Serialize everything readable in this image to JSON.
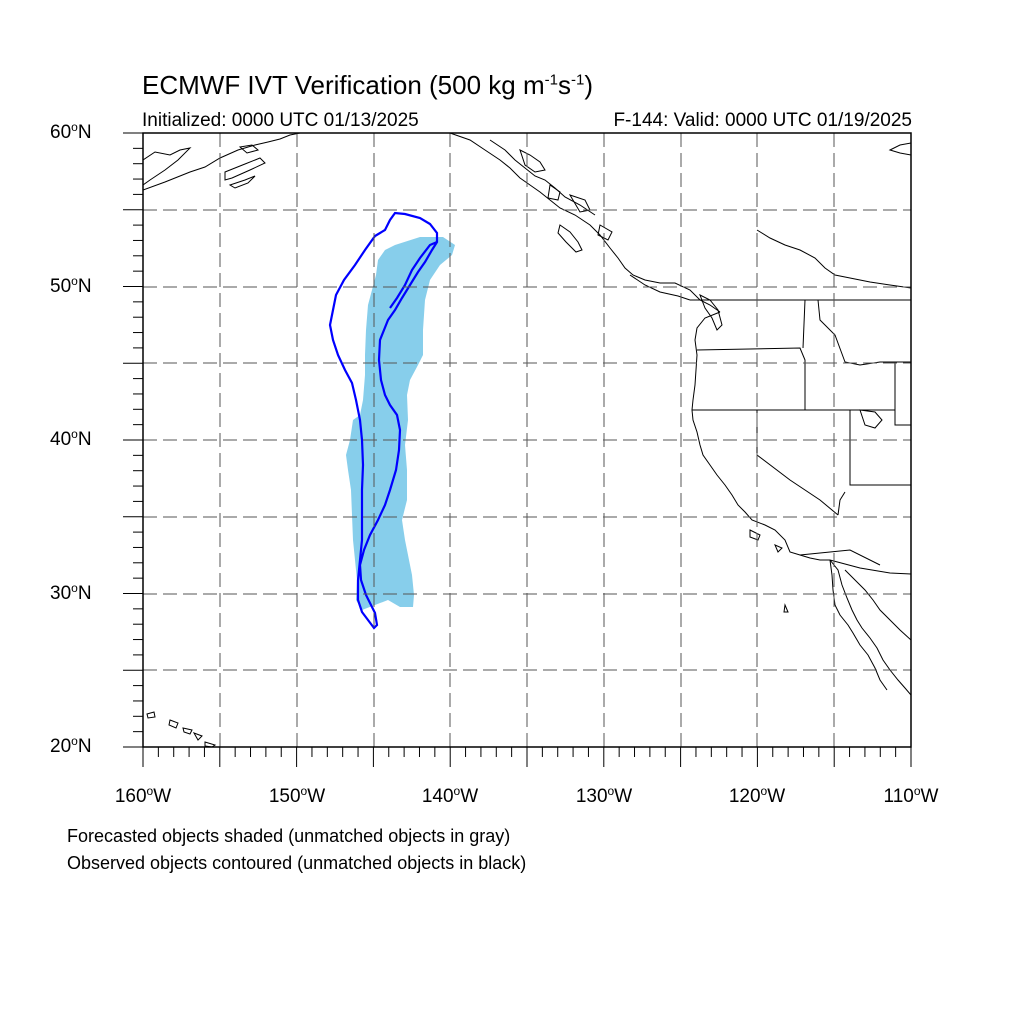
{
  "title": {
    "main": "ECMWF IVT Verification (500 kg m",
    "sup1": "-1",
    "mid": "s",
    "sup2": "-1",
    "end": ")"
  },
  "subtitle": {
    "left": "Initialized: 0000 UTC 01/13/2025",
    "right": "F-144: Valid: 0000 UTC 01/19/2025"
  },
  "lat_labels": [
    "60",
    "50",
    "40",
    "30",
    "20"
  ],
  "lat_suffix": "N",
  "lon_labels": [
    "160",
    "150",
    "140",
    "130",
    "120",
    "110"
  ],
  "lon_suffix": "W",
  "notes": [
    "Forecasted objects shaded (unmatched objects in gray)",
    "Observed objects contoured (unmatched objects in black)"
  ],
  "colors": {
    "forecast_fill": "#87ceeb",
    "observed_contour": "#0000ff",
    "coast": "#000000",
    "grid": "#555555"
  }
}
